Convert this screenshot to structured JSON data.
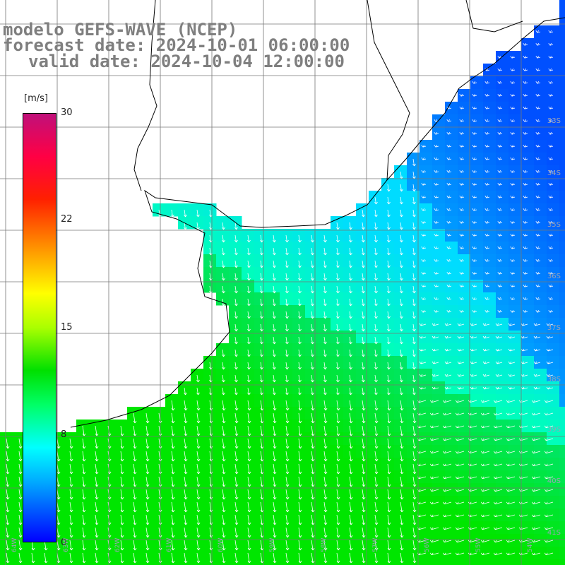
{
  "title": {
    "line1": "modelo GEFS-WAVE (NCEP)",
    "line2": "forecast date: 2024-10-01 06:00:00",
    "line3": "valid date: 2024-10-04 12:00:00"
  },
  "colorbar": {
    "unit": "[m/s]",
    "ticks": [
      "30",
      "22",
      "15",
      "8",
      "0"
    ],
    "colors": [
      "#0000ff",
      "#00aaff",
      "#00ffff",
      "#00ff66",
      "#00e000",
      "#aaff00",
      "#ffff00",
      "#ff9900",
      "#ff2000",
      "#ff0044",
      "#c0107a"
    ]
  },
  "axes": {
    "lat_labels": [
      "33S",
      "34S",
      "35S",
      "36S",
      "37S",
      "38S",
      "39S",
      "40S",
      "41S"
    ],
    "lon_labels": [
      "64W",
      "63W",
      "62W",
      "61W",
      "60W",
      "59W",
      "58W",
      "57W",
      "56W",
      "55W",
      "54W"
    ]
  },
  "map_colors": {
    "land": "#ffffff",
    "grid": "#777777",
    "coast": "#000000",
    "arrows": "#ffffff"
  }
}
